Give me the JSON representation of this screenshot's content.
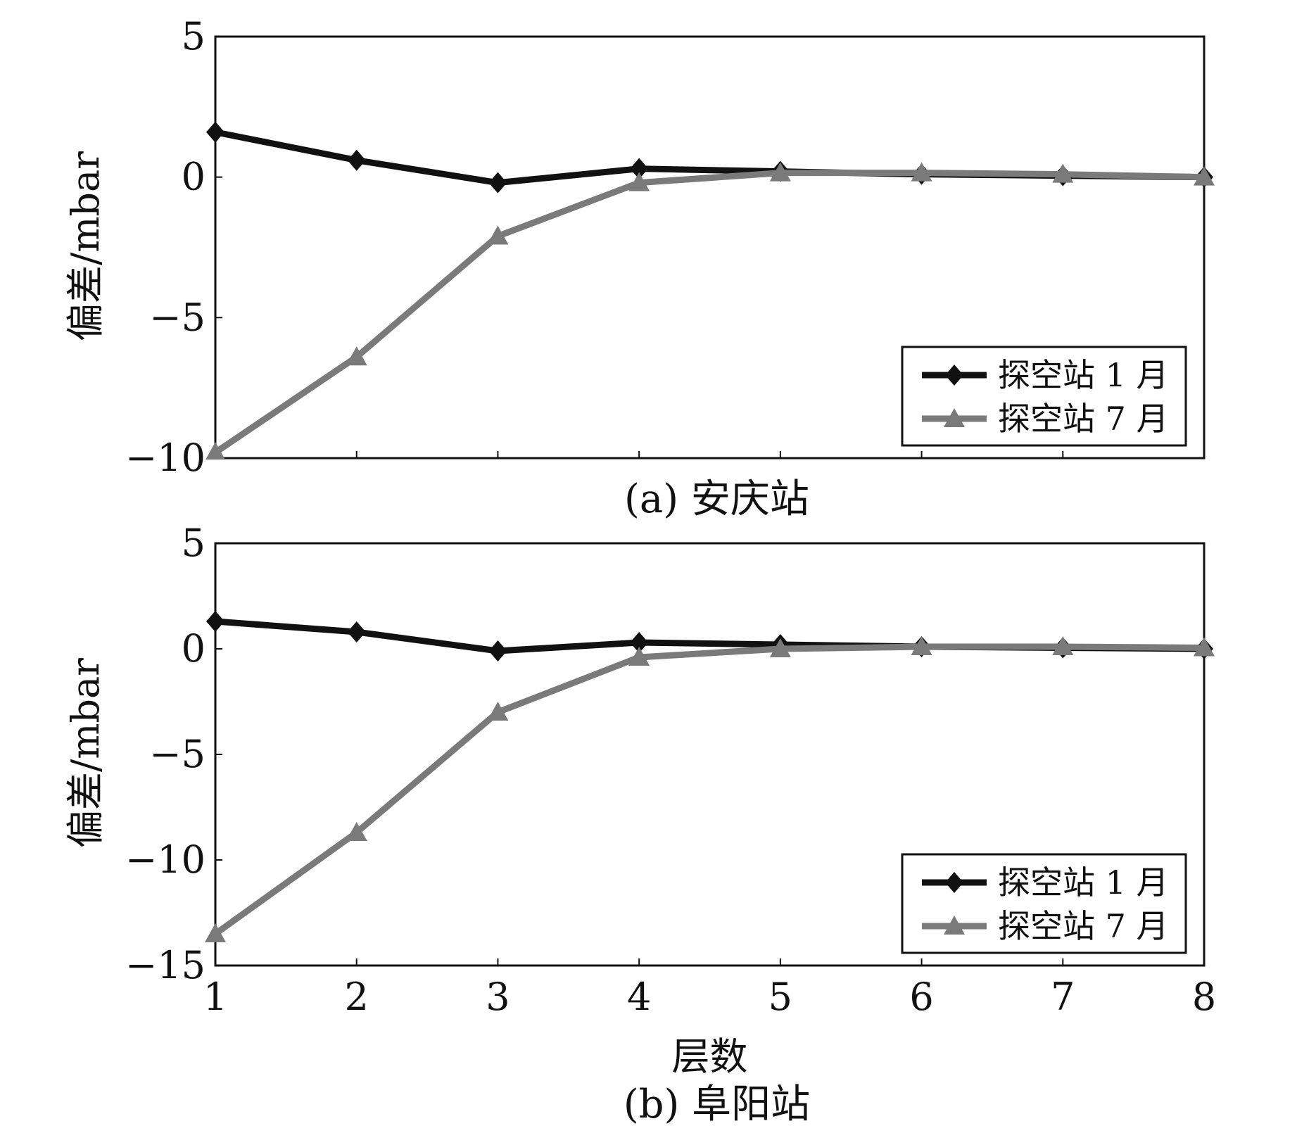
{
  "chart_data": [
    {
      "type": "line",
      "caption": "(a) 安庆站",
      "ylabel": "偏差/mbar",
      "xlabel": "",
      "x": [
        1,
        2,
        3,
        4,
        5,
        6,
        7,
        8
      ],
      "xlim": [
        1,
        8
      ],
      "ylim": [
        -10,
        5
      ],
      "yticks": [
        5,
        0,
        -5,
        -10
      ],
      "ytick_labels": [
        "5",
        "0",
        "−5",
        "−10"
      ],
      "xticks_labeled": false,
      "legend_position": "bottom-right",
      "series": [
        {
          "name": "探空站 1 月",
          "marker": "diamond",
          "color": "#111111",
          "values": [
            1.6,
            0.6,
            -0.2,
            0.3,
            0.2,
            0.1,
            0.05,
            0.0
          ]
        },
        {
          "name": "探空站 7 月",
          "marker": "triangle",
          "color": "#7a7a7a",
          "values": [
            -9.8,
            -6.4,
            -2.1,
            -0.2,
            0.15,
            0.15,
            0.1,
            0.0
          ]
        }
      ]
    },
    {
      "type": "line",
      "caption": "(b) 阜阳站",
      "ylabel": "偏差/mbar",
      "xlabel": "层数",
      "x": [
        1,
        2,
        3,
        4,
        5,
        6,
        7,
        8
      ],
      "xlim": [
        1,
        8
      ],
      "ylim": [
        -15,
        5
      ],
      "yticks": [
        5,
        0,
        -5,
        -10,
        -15
      ],
      "ytick_labels": [
        "5",
        "0",
        "−5",
        "−10",
        "−15"
      ],
      "xticks_labeled": true,
      "xtick_labels": [
        "1",
        "2",
        "3",
        "4",
        "5",
        "6",
        "7",
        "8"
      ],
      "legend_position": "bottom-right",
      "series": [
        {
          "name": "探空站 1 月",
          "marker": "diamond",
          "color": "#111111",
          "values": [
            1.3,
            0.8,
            -0.1,
            0.3,
            0.2,
            0.1,
            0.05,
            0.0
          ]
        },
        {
          "name": "探空站 7 月",
          "marker": "triangle",
          "color": "#7a7a7a",
          "values": [
            -13.5,
            -8.7,
            -3.0,
            -0.4,
            0.0,
            0.1,
            0.1,
            0.05
          ]
        }
      ]
    }
  ]
}
